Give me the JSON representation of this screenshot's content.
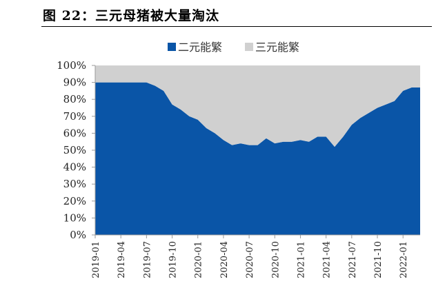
{
  "figure_title": "图 22：三元母猪被大量淘汰",
  "chart_data": {
    "type": "area",
    "stacked": true,
    "title": "图 22：三元母猪被大量淘汰",
    "xlabel": "",
    "ylabel": "",
    "ylim": [
      0,
      100
    ],
    "y_unit": "%",
    "y_ticks": [
      "0%",
      "10%",
      "20%",
      "30%",
      "40%",
      "50%",
      "60%",
      "70%",
      "80%",
      "90%",
      "100%"
    ],
    "x": [
      "2019-01",
      "2019-02",
      "2019-03",
      "2019-04",
      "2019-05",
      "2019-06",
      "2019-07",
      "2019-08",
      "2019-09",
      "2019-10",
      "2019-11",
      "2019-12",
      "2020-01",
      "2020-02",
      "2020-03",
      "2020-04",
      "2020-05",
      "2020-06",
      "2020-07",
      "2020-08",
      "2020-09",
      "2020-10",
      "2020-11",
      "2020-12",
      "2021-01",
      "2021-02",
      "2021-03",
      "2021-04",
      "2021-05",
      "2021-06",
      "2021-07",
      "2021-08",
      "2021-09",
      "2021-10",
      "2021-11",
      "2021-12",
      "2022-01",
      "2022-02",
      "2022-03"
    ],
    "x_tick_labels": [
      "2019-01",
      "2019-04",
      "2019-07",
      "2019-10",
      "2020-01",
      "2020-04",
      "2020-07",
      "2020-10",
      "2021-01",
      "2021-04",
      "2021-07",
      "2021-10",
      "2022-01"
    ],
    "series": [
      {
        "name": "二元能繁",
        "color": "#0a55a7",
        "values": [
          90,
          90,
          90,
          90,
          90,
          90,
          90,
          88,
          85,
          77,
          74,
          70,
          68,
          63,
          60,
          56,
          53,
          54,
          53,
          53,
          57,
          54,
          55,
          55,
          56,
          55,
          58,
          58,
          52,
          58,
          65,
          69,
          72,
          75,
          77,
          79,
          85,
          87,
          87
        ]
      },
      {
        "name": "三元能繁",
        "color": "#d0d0d0",
        "values": [
          10,
          10,
          10,
          10,
          10,
          10,
          10,
          12,
          15,
          23,
          26,
          30,
          32,
          37,
          40,
          44,
          47,
          46,
          47,
          47,
          43,
          46,
          45,
          45,
          44,
          45,
          42,
          42,
          48,
          42,
          35,
          31,
          28,
          25,
          23,
          21,
          15,
          13,
          13
        ]
      }
    ],
    "legend_position": "top-center",
    "grid": false
  }
}
